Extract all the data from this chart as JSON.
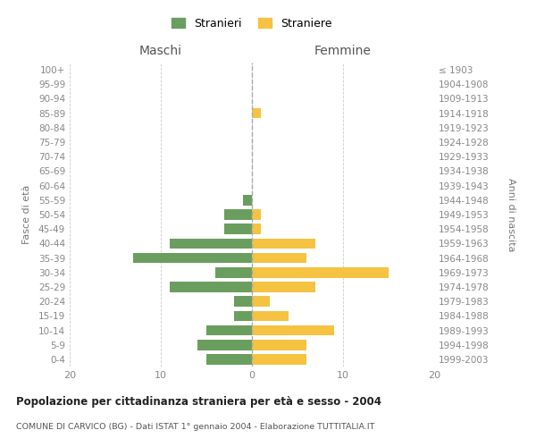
{
  "age_groups": [
    "100+",
    "95-99",
    "90-94",
    "85-89",
    "80-84",
    "75-79",
    "70-74",
    "65-69",
    "60-64",
    "55-59",
    "50-54",
    "45-49",
    "40-44",
    "35-39",
    "30-34",
    "25-29",
    "20-24",
    "15-19",
    "10-14",
    "5-9",
    "0-4"
  ],
  "birth_years": [
    "≤ 1903",
    "1904-1908",
    "1909-1913",
    "1914-1918",
    "1919-1923",
    "1924-1928",
    "1929-1933",
    "1934-1938",
    "1939-1943",
    "1944-1948",
    "1949-1953",
    "1954-1958",
    "1959-1963",
    "1964-1968",
    "1969-1973",
    "1974-1978",
    "1979-1983",
    "1984-1988",
    "1989-1993",
    "1994-1998",
    "1999-2003"
  ],
  "maschi": [
    0,
    0,
    0,
    0,
    0,
    0,
    0,
    0,
    0,
    1,
    3,
    3,
    9,
    13,
    4,
    9,
    2,
    2,
    5,
    6,
    5
  ],
  "femmine": [
    0,
    0,
    0,
    1,
    0,
    0,
    0,
    0,
    0,
    0,
    1,
    1,
    7,
    6,
    15,
    7,
    2,
    4,
    9,
    6,
    6
  ],
  "color_maschi": "#6a9e5e",
  "color_femmine": "#f5c242",
  "title": "Popolazione per cittadinanza straniera per età e sesso - 2004",
  "subtitle": "COMUNE DI CARVICO (BG) - Dati ISTAT 1° gennaio 2004 - Elaborazione TUTTITALIA.IT",
  "xlabel_left": "Maschi",
  "xlabel_right": "Femmine",
  "ylabel_left": "Fasce di età",
  "ylabel_right": "Anni di nascita",
  "xlim": 20,
  "legend_stranieri": "Stranieri",
  "legend_straniere": "Straniere",
  "background_color": "#ffffff",
  "grid_color": "#cccccc"
}
